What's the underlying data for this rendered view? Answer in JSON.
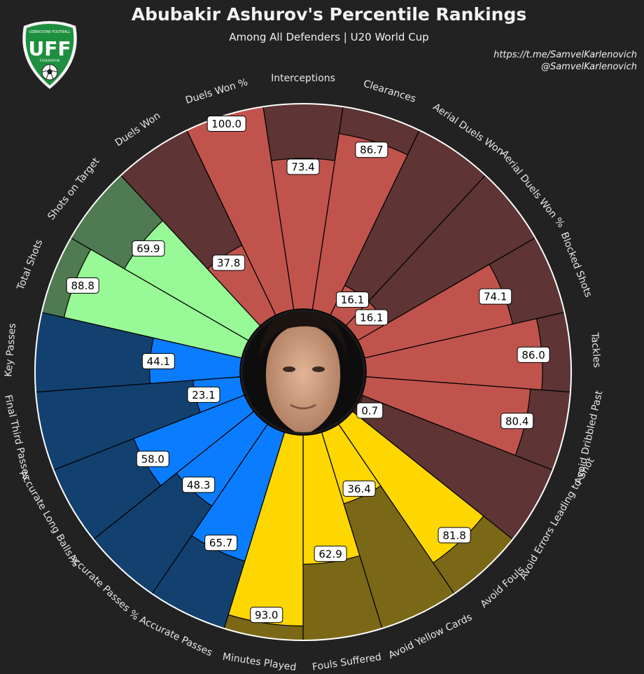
{
  "header": {
    "title": "Abubakir Ashurov's Percentile Rankings",
    "subtitle": "Among All Defenders | U20 World Cup",
    "credit_line1": "https://t.me/SamvelKarlenovich",
    "credit_line2": "@SamvelKarlenovich"
  },
  "logo": {
    "top_text": "UZBEKISTAN FOOTBALL",
    "main_text": "UFF",
    "bottom_text": "FEDERATION",
    "color": "#1e8f3e"
  },
  "colors": {
    "background": "#222222",
    "defending": "#c0544d",
    "defending_bg": "#5e3434",
    "shooting": "#98f997",
    "shooting_bg": "#507a52",
    "passing": "#0a7cff",
    "passing_bg": "#13416f",
    "discipline": "#ffd700",
    "discipline_bg": "#7a6816"
  },
  "chart_data": {
    "type": "polar-bar",
    "title": "Abubakir Ashurov's Percentile Rankings",
    "subtitle": "Among All Defenders | U20 World Cup",
    "range": [
      0,
      100
    ],
    "series": [
      {
        "label": "Interceptions",
        "value": 73.4,
        "group": "defending"
      },
      {
        "label": "Clearances",
        "value": 86.7,
        "group": "defending"
      },
      {
        "label": "Aerial Duels Won",
        "value": 16.1,
        "group": "defending"
      },
      {
        "label": "Aerial Duels Won %",
        "value": 16.1,
        "group": "defending"
      },
      {
        "label": "Blocked Shots",
        "value": 74.1,
        "group": "defending"
      },
      {
        "label": "Tackles",
        "value": 86.0,
        "group": "defending"
      },
      {
        "label": "Avoid Dribbled Past",
        "value": 80.4,
        "group": "defending"
      },
      {
        "label": "Avoid Errors Leading to Shot",
        "value": 0.7,
        "group": "defending"
      },
      {
        "label": "Avoid Fouls",
        "value": 81.8,
        "group": "discipline"
      },
      {
        "label": "Avoid Yellow Cards",
        "value": 36.4,
        "group": "discipline"
      },
      {
        "label": "Fouls Suffered",
        "value": 62.9,
        "group": "discipline"
      },
      {
        "label": "Minutes Played",
        "value": 93.0,
        "group": "discipline"
      },
      {
        "label": "Accurate Passes",
        "value": 65.7,
        "group": "passing"
      },
      {
        "label": "Accurate Passes %",
        "value": 48.3,
        "group": "passing"
      },
      {
        "label": "Accurate Long Balls %",
        "value": 58.0,
        "group": "passing"
      },
      {
        "label": "Final Third Passes",
        "value": 23.1,
        "group": "passing"
      },
      {
        "label": "Key Passes",
        "value": 44.1,
        "group": "passing"
      },
      {
        "label": "Total Shots",
        "value": 88.8,
        "group": "shooting"
      },
      {
        "label": "Shots on Target",
        "value": 69.9,
        "group": "shooting"
      },
      {
        "label": "Duels Won",
        "value": 37.8,
        "group": "defending"
      },
      {
        "label": "Duels Won %",
        "value": 100.0,
        "group": "defending"
      }
    ]
  }
}
